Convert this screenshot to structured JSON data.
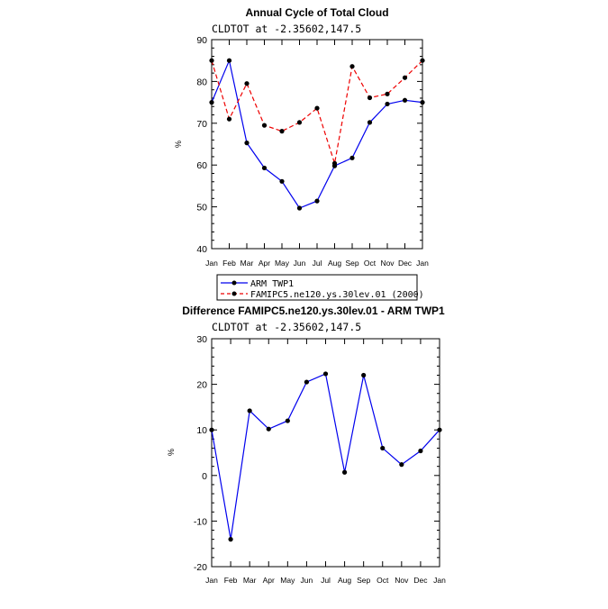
{
  "chart_data": [
    {
      "type": "line",
      "title": "Annual Cycle of Total Cloud",
      "subtitle": "CLDTOT at -2.35602,147.5",
      "ylabel": "%",
      "xlabel": "",
      "categories": [
        "Jan",
        "Feb",
        "Mar",
        "Apr",
        "May",
        "Jun",
        "Jul",
        "Aug",
        "Sep",
        "Oct",
        "Nov",
        "Dec",
        "Jan"
      ],
      "ylim": [
        40,
        90
      ],
      "yticks": [
        "40",
        "50",
        "60",
        "70",
        "80",
        "90"
      ],
      "series": [
        {
          "name": "ARM TWP1",
          "color": "#0000ee",
          "dash": "solid",
          "values": [
            75,
            85,
            65.3,
            59.3,
            56.1,
            49.7,
            51.4,
            59.8,
            61.7,
            70.2,
            74.6,
            75.5,
            75
          ]
        },
        {
          "name": "FAMIPC5.ne120.ys.30lev.01 (2000)",
          "color": "#ee0000",
          "dash": "dashed",
          "values": [
            85,
            71,
            79.5,
            69.5,
            68.1,
            70.2,
            73.6,
            60.4,
            83.6,
            76.1,
            77,
            80.9,
            85
          ]
        }
      ],
      "legend": "bottom"
    },
    {
      "type": "line",
      "title": "Difference FAMIPC5.ne120.ys.30lev.01 - ARM TWP1",
      "subtitle": "CLDTOT at -2.35602,147.5",
      "ylabel": "%",
      "xlabel": "",
      "categories": [
        "Jan",
        "Feb",
        "Mar",
        "Apr",
        "May",
        "Jun",
        "Jul",
        "Aug",
        "Sep",
        "Oct",
        "Nov",
        "Dec",
        "Jan"
      ],
      "ylim": [
        -20,
        30
      ],
      "yticks": [
        "-20",
        "-10",
        "0",
        "10",
        "20",
        "30"
      ],
      "series": [
        {
          "name": "Difference",
          "color": "#0000ee",
          "dash": "solid",
          "values": [
            10,
            -14,
            14.2,
            10.2,
            12,
            20.5,
            22.3,
            0.7,
            22,
            6,
            2.4,
            5.4,
            10
          ]
        }
      ]
    }
  ]
}
